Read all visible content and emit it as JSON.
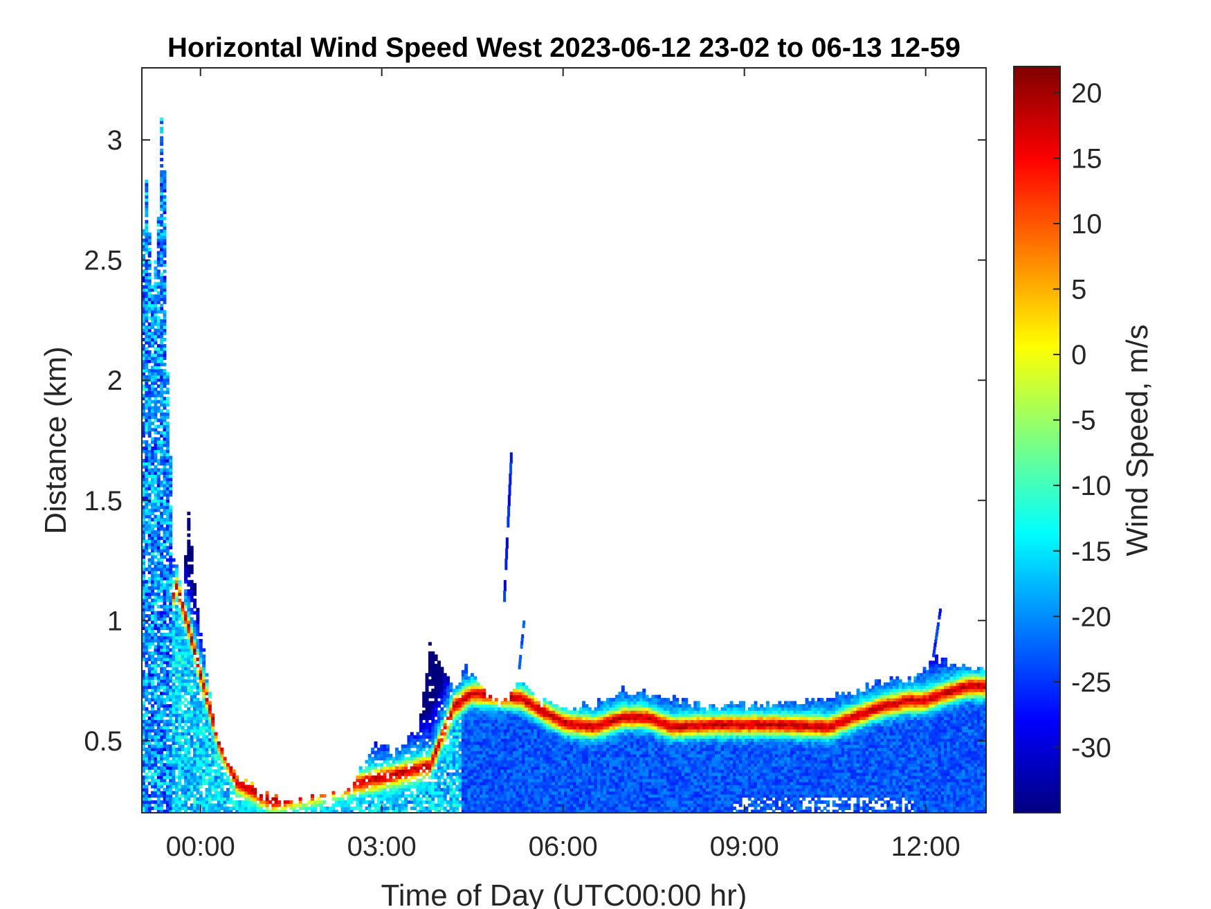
{
  "chart_data": {
    "type": "heatmap",
    "title": "Horizontal Wind Speed West 2023-06-12 23-02 to 06-13 12-59",
    "xlabel": "Time of Day (UTC00:00 hr)",
    "ylabel": "Distance (km)",
    "colorbar_label": "Wind Speed, m/s",
    "x_units": "hours relative to 2023-06-13 00:00 UTC",
    "xlim": [
      -0.97,
      13.0
    ],
    "ylim": [
      0.2,
      3.3
    ],
    "clim": [
      -35,
      22
    ],
    "x_ticks": [
      {
        "value": 0,
        "label": "00:00"
      },
      {
        "value": 3,
        "label": "03:00"
      },
      {
        "value": 6,
        "label": "06:00"
      },
      {
        "value": 9,
        "label": "09:00"
      },
      {
        "value": 12,
        "label": "12:00"
      }
    ],
    "y_ticks": [
      {
        "value": 0.5,
        "label": "0.5"
      },
      {
        "value": 1,
        "label": "1"
      },
      {
        "value": 1.5,
        "label": "1.5"
      },
      {
        "value": 2,
        "label": "2"
      },
      {
        "value": 2.5,
        "label": "2.5"
      },
      {
        "value": 3,
        "label": "3"
      }
    ],
    "colorbar_ticks": [
      {
        "value": 20,
        "label": "20"
      },
      {
        "value": 15,
        "label": "15"
      },
      {
        "value": 10,
        "label": "10"
      },
      {
        "value": 5,
        "label": "5"
      },
      {
        "value": 0,
        "label": "0"
      },
      {
        "value": -5,
        "label": "-5"
      },
      {
        "value": -10,
        "label": "-10"
      },
      {
        "value": -15,
        "label": "-15"
      },
      {
        "value": -20,
        "label": "-20"
      },
      {
        "value": -25,
        "label": "-25"
      },
      {
        "value": -30,
        "label": "-30"
      }
    ],
    "colormap": "jet",
    "colormap_stops": [
      "#00007f",
      "#0000ff",
      "#007fff",
      "#00ffff",
      "#7fff7f",
      "#ffff00",
      "#ff7f00",
      "#ff0000",
      "#7f0000"
    ],
    "grid": false,
    "coverage_top_km": [
      {
        "t": -0.97,
        "h": 2.5
      },
      {
        "t": -0.9,
        "h": 2.85
      },
      {
        "t": -0.8,
        "h": 2.4
      },
      {
        "t": -0.7,
        "h": 2.65
      },
      {
        "t": -0.62,
        "h": 3.28
      },
      {
        "t": -0.55,
        "h": 2.1
      },
      {
        "t": -0.45,
        "h": 1.3
      },
      {
        "t": -0.3,
        "h": 1.1
      },
      {
        "t": -0.2,
        "h": 1.45
      },
      {
        "t": 0.0,
        "h": 0.95
      },
      {
        "t": 0.25,
        "h": 0.55
      },
      {
        "t": 0.5,
        "h": 0.38
      },
      {
        "t": 1.0,
        "h": 0.28
      },
      {
        "t": 1.5,
        "h": 0.25
      },
      {
        "t": 2.0,
        "h": 0.26
      },
      {
        "t": 2.5,
        "h": 0.3
      },
      {
        "t": 2.9,
        "h": 0.5
      },
      {
        "t": 3.2,
        "h": 0.45
      },
      {
        "t": 3.6,
        "h": 0.55
      },
      {
        "t": 3.8,
        "h": 0.9
      },
      {
        "t": 4.0,
        "h": 0.8
      },
      {
        "t": 4.2,
        "h": 0.7
      },
      {
        "t": 4.4,
        "h": 0.8
      },
      {
        "t": 4.7,
        "h": 0.7
      },
      {
        "t": 5.0,
        "h": 0.65
      },
      {
        "t": 5.3,
        "h": 0.75
      },
      {
        "t": 5.6,
        "h": 0.66
      },
      {
        "t": 6.0,
        "h": 0.64
      },
      {
        "t": 6.5,
        "h": 0.65
      },
      {
        "t": 7.0,
        "h": 0.72
      },
      {
        "t": 7.5,
        "h": 0.68
      },
      {
        "t": 8.0,
        "h": 0.66
      },
      {
        "t": 8.5,
        "h": 0.64
      },
      {
        "t": 9.0,
        "h": 0.65
      },
      {
        "t": 10.0,
        "h": 0.66
      },
      {
        "t": 10.8,
        "h": 0.7
      },
      {
        "t": 11.3,
        "h": 0.75
      },
      {
        "t": 11.8,
        "h": 0.76
      },
      {
        "t": 12.2,
        "h": 0.84
      },
      {
        "t": 12.6,
        "h": 0.81
      },
      {
        "t": 13.0,
        "h": 0.8
      }
    ],
    "jet_core_km": [
      {
        "t": -0.97,
        "h": 0.7
      },
      {
        "t": -0.4,
        "h": 1.15
      },
      {
        "t": -0.2,
        "h": 0.98
      },
      {
        "t": 0.0,
        "h": 0.78
      },
      {
        "t": 0.3,
        "h": 0.5
      },
      {
        "t": 0.6,
        "h": 0.33
      },
      {
        "t": 1.2,
        "h": 0.25
      },
      {
        "t": 3.0,
        "h": 0.35
      },
      {
        "t": 3.8,
        "h": 0.4
      },
      {
        "t": 4.2,
        "h": 0.65
      },
      {
        "t": 4.5,
        "h": 0.7
      },
      {
        "t": 5.3,
        "h": 0.68
      },
      {
        "t": 5.7,
        "h": 0.62
      },
      {
        "t": 6.0,
        "h": 0.58
      },
      {
        "t": 6.5,
        "h": 0.56
      },
      {
        "t": 7.0,
        "h": 0.6
      },
      {
        "t": 7.4,
        "h": 0.6
      },
      {
        "t": 7.8,
        "h": 0.56
      },
      {
        "t": 8.5,
        "h": 0.57
      },
      {
        "t": 9.5,
        "h": 0.57
      },
      {
        "t": 10.4,
        "h": 0.56
      },
      {
        "t": 10.8,
        "h": 0.6
      },
      {
        "t": 11.2,
        "h": 0.64
      },
      {
        "t": 11.7,
        "h": 0.67
      },
      {
        "t": 12.0,
        "h": 0.67
      },
      {
        "t": 12.3,
        "h": 0.7
      },
      {
        "t": 12.7,
        "h": 0.73
      },
      {
        "t": 13.0,
        "h": 0.73
      }
    ],
    "isolated_echoes": [
      {
        "t_start": 5.0,
        "t_end": 5.12,
        "h_bottom": 1.08,
        "h_top": 1.7,
        "value": -26
      },
      {
        "t_start": 5.25,
        "t_end": 5.33,
        "h_bottom": 0.8,
        "h_top": 1.0,
        "value": -24
      },
      {
        "t_start": 12.1,
        "t_end": 12.22,
        "h_bottom": 0.85,
        "h_top": 1.05,
        "value": -25
      }
    ]
  }
}
